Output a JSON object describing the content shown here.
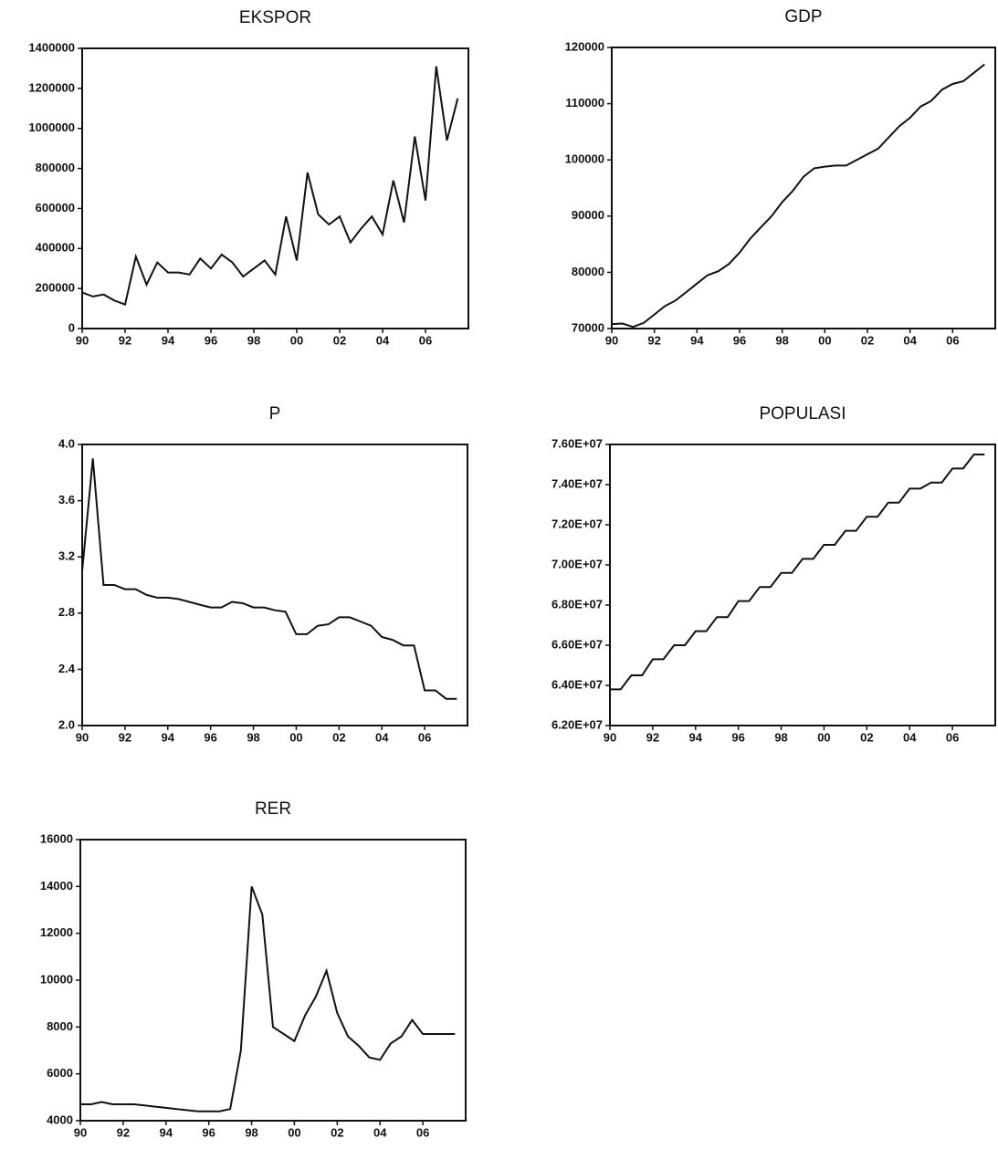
{
  "chart_data": [
    {
      "type": "line",
      "title": "EKSPOR",
      "x": [
        1990,
        1990.5,
        1991,
        1991.5,
        1992,
        1992.5,
        1993,
        1993.5,
        1994,
        1994.5,
        1995,
        1995.5,
        1996,
        1996.5,
        1997,
        1997.5,
        1998,
        1998.5,
        1999,
        1999.5,
        2000,
        2000.5,
        2001,
        2001.5,
        2002,
        2002.5,
        2003,
        2003.5,
        2004,
        2004.5,
        2005,
        2005.5,
        2006,
        2006.5,
        2007,
        2007.5
      ],
      "series": [
        {
          "name": "EKSPOR",
          "color": "#111111",
          "values": [
            180000,
            160000,
            170000,
            140000,
            120000,
            360000,
            220000,
            330000,
            280000,
            280000,
            270000,
            350000,
            300000,
            370000,
            330000,
            260000,
            300000,
            340000,
            270000,
            560000,
            340000,
            780000,
            570000,
            520000,
            560000,
            430000,
            500000,
            560000,
            470000,
            740000,
            530000,
            960000,
            640000,
            1310000,
            940000,
            1150000
          ]
        }
      ],
      "xlim": [
        1990,
        2008
      ],
      "xticks": [
        {
          "value": 1990,
          "label": "90"
        },
        {
          "value": 1992,
          "label": "92"
        },
        {
          "value": 1994,
          "label": "94"
        },
        {
          "value": 1996,
          "label": "96"
        },
        {
          "value": 1998,
          "label": "98"
        },
        {
          "value": 2000,
          "label": "00"
        },
        {
          "value": 2002,
          "label": "02"
        },
        {
          "value": 2004,
          "label": "04"
        },
        {
          "value": 2006,
          "label": "06"
        }
      ],
      "ylim": [
        0,
        1400000
      ],
      "yticks": [
        0,
        200000,
        400000,
        600000,
        800000,
        1000000,
        1200000,
        1400000
      ]
    },
    {
      "type": "line",
      "title": "GDP",
      "x": [
        1990,
        1990.5,
        1991,
        1991.5,
        1992,
        1992.5,
        1993,
        1993.5,
        1994,
        1994.5,
        1995,
        1995.5,
        1996,
        1996.5,
        1997,
        1997.5,
        1998,
        1998.5,
        1999,
        1999.5,
        2000,
        2000.5,
        2001,
        2001.5,
        2002,
        2002.5,
        2003,
        2003.5,
        2004,
        2004.5,
        2005,
        2005.5,
        2006,
        2006.5,
        2007,
        2007.5
      ],
      "series": [
        {
          "name": "GDP",
          "color": "#111111",
          "values": [
            70800,
            70900,
            70300,
            71000,
            72500,
            74000,
            75000,
            76500,
            78000,
            79500,
            80200,
            81500,
            83500,
            86000,
            88000,
            90000,
            92500,
            94500,
            97000,
            98500,
            98800,
            99000,
            99000,
            100000,
            101000,
            102000,
            104000,
            106000,
            107500,
            109500,
            110500,
            112500,
            113500,
            114000,
            115500,
            117000
          ]
        }
      ],
      "xlim": [
        1990,
        2008
      ],
      "xticks": [
        {
          "value": 1990,
          "label": "90"
        },
        {
          "value": 1992,
          "label": "92"
        },
        {
          "value": 1994,
          "label": "94"
        },
        {
          "value": 1996,
          "label": "96"
        },
        {
          "value": 1998,
          "label": "98"
        },
        {
          "value": 2000,
          "label": "00"
        },
        {
          "value": 2002,
          "label": "02"
        },
        {
          "value": 2004,
          "label": "04"
        },
        {
          "value": 2006,
          "label": "06"
        }
      ],
      "ylim": [
        70000,
        120000
      ],
      "yticks": [
        70000,
        80000,
        90000,
        100000,
        110000,
        120000
      ]
    },
    {
      "type": "line",
      "title": "P",
      "x": [
        1990,
        1990.5,
        1991,
        1991.5,
        1992,
        1992.5,
        1993,
        1993.5,
        1994,
        1994.5,
        1995,
        1995.5,
        1996,
        1996.5,
        1997,
        1997.5,
        1998,
        1998.5,
        1999,
        1999.5,
        2000,
        2000.5,
        2001,
        2001.5,
        2002,
        2002.5,
        2003,
        2003.5,
        2004,
        2004.5,
        2005,
        2005.5,
        2006,
        2006.5,
        2007,
        2007.5
      ],
      "series": [
        {
          "name": "P",
          "color": "#111111",
          "values": [
            3.1,
            3.9,
            3.0,
            3.0,
            2.97,
            2.97,
            2.93,
            2.91,
            2.91,
            2.9,
            2.88,
            2.86,
            2.84,
            2.84,
            2.88,
            2.87,
            2.84,
            2.84,
            2.82,
            2.81,
            2.65,
            2.65,
            2.71,
            2.72,
            2.77,
            2.77,
            2.74,
            2.71,
            2.63,
            2.61,
            2.57,
            2.57,
            2.25,
            2.25,
            2.19,
            2.19
          ]
        }
      ],
      "xlim": [
        1990,
        2008
      ],
      "xticks": [
        {
          "value": 1990,
          "label": "90"
        },
        {
          "value": 1992,
          "label": "92"
        },
        {
          "value": 1994,
          "label": "94"
        },
        {
          "value": 1996,
          "label": "96"
        },
        {
          "value": 1998,
          "label": "98"
        },
        {
          "value": 2000,
          "label": "00"
        },
        {
          "value": 2002,
          "label": "02"
        },
        {
          "value": 2004,
          "label": "04"
        },
        {
          "value": 2006,
          "label": "06"
        }
      ],
      "ylim": [
        2.0,
        4.0
      ],
      "yticks": [
        {
          "value": 2,
          "label": "2.0"
        },
        2.4,
        2.8,
        3.2,
        3.6,
        {
          "value": 4,
          "label": "4.0"
        }
      ]
    },
    {
      "type": "line",
      "title": "POPULASI",
      "x": [
        1990,
        1990.5,
        1991,
        1991.5,
        1992,
        1992.5,
        1993,
        1993.5,
        1994,
        1994.5,
        1995,
        1995.5,
        1996,
        1996.5,
        1997,
        1997.5,
        1998,
        1998.5,
        1999,
        1999.5,
        2000,
        2000.5,
        2001,
        2001.5,
        2002,
        2002.5,
        2003,
        2003.5,
        2004,
        2004.5,
        2005,
        2005.5,
        2006,
        2006.5,
        2007,
        2007.5
      ],
      "series": [
        {
          "name": "POPULASI",
          "color": "#111111",
          "values": [
            63800000,
            63800000,
            64500000,
            64500000,
            65300000,
            65300000,
            66000000,
            66000000,
            66700000,
            66700000,
            67400000,
            67400000,
            68200000,
            68200000,
            68900000,
            68900000,
            69600000,
            69600000,
            70300000,
            70300000,
            71000000,
            71000000,
            71700000,
            71700000,
            72400000,
            72400000,
            73100000,
            73100000,
            73800000,
            73800000,
            74100000,
            74100000,
            74800000,
            74800000,
            75500000,
            75500000
          ]
        }
      ],
      "xlim": [
        1990,
        2008
      ],
      "xticks": [
        {
          "value": 1990,
          "label": "90"
        },
        {
          "value": 1992,
          "label": "92"
        },
        {
          "value": 1994,
          "label": "94"
        },
        {
          "value": 1996,
          "label": "96"
        },
        {
          "value": 1998,
          "label": "98"
        },
        {
          "value": 2000,
          "label": "00"
        },
        {
          "value": 2002,
          "label": "02"
        },
        {
          "value": 2004,
          "label": "04"
        },
        {
          "value": 2006,
          "label": "06"
        }
      ],
      "ylim": [
        62000000,
        76000000
      ],
      "yticks": [
        {
          "value": 62000000,
          "label": "6.20E+07"
        },
        {
          "value": 64000000,
          "label": "6.40E+07"
        },
        {
          "value": 66000000,
          "label": "6.60E+07"
        },
        {
          "value": 68000000,
          "label": "6.80E+07"
        },
        {
          "value": 70000000,
          "label": "7.00E+07"
        },
        {
          "value": 72000000,
          "label": "7.20E+07"
        },
        {
          "value": 74000000,
          "label": "7.40E+07"
        },
        {
          "value": 76000000,
          "label": "7.60E+07"
        }
      ]
    },
    {
      "type": "line",
      "title": "RER",
      "x": [
        1990,
        1990.5,
        1991,
        1991.5,
        1992,
        1992.5,
        1993,
        1993.5,
        1994,
        1994.5,
        1995,
        1995.5,
        1996,
        1996.5,
        1997,
        1997.5,
        1998,
        1998.5,
        1999,
        1999.5,
        2000,
        2000.5,
        2001,
        2001.5,
        2002,
        2002.5,
        2003,
        2003.5,
        2004,
        2004.5,
        2005,
        2005.5,
        2006,
        2006.5,
        2007,
        2007.5
      ],
      "series": [
        {
          "name": "RER",
          "color": "#111111",
          "values": [
            4700,
            4700,
            4800,
            4700,
            4700,
            4700,
            4650,
            4600,
            4550,
            4500,
            4450,
            4400,
            4400,
            4400,
            4500,
            7000,
            14000,
            12800,
            8000,
            7700,
            7400,
            8500,
            9300,
            10400,
            8600,
            7600,
            7200,
            6700,
            6600,
            7300,
            7600,
            8300,
            7700,
            7700,
            7700,
            7700
          ]
        }
      ],
      "xlim": [
        1990,
        2008
      ],
      "xticks": [
        {
          "value": 1990,
          "label": "90"
        },
        {
          "value": 1992,
          "label": "92"
        },
        {
          "value": 1994,
          "label": "94"
        },
        {
          "value": 1996,
          "label": "96"
        },
        {
          "value": 1998,
          "label": "98"
        },
        {
          "value": 2000,
          "label": "00"
        },
        {
          "value": 2002,
          "label": "02"
        },
        {
          "value": 2004,
          "label": "04"
        },
        {
          "value": 2006,
          "label": "06"
        }
      ],
      "ylim": [
        4000,
        16000
      ],
      "yticks": [
        4000,
        6000,
        8000,
        10000,
        12000,
        14000,
        16000
      ]
    }
  ]
}
